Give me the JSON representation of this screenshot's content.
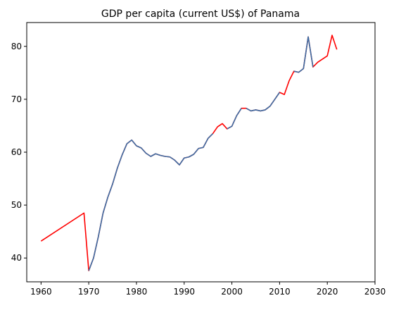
{
  "chart_data": {
    "type": "line",
    "title": "GDP per capita (current US$) of Panama",
    "xlabel": "",
    "ylabel": "",
    "xlim": [
      1957,
      2030
    ],
    "ylim": [
      35.5,
      84.5
    ],
    "xticks": [
      1960,
      1970,
      1980,
      1990,
      2000,
      2010,
      2020,
      2030
    ],
    "yticks": [
      40,
      50,
      60,
      70,
      80
    ],
    "grid": false,
    "series": [
      {
        "color": "#ff0000",
        "points": [
          [
            1960,
            43.2
          ],
          [
            1969,
            48.5
          ],
          [
            1970,
            37.6
          ],
          [
            1971,
            40.0
          ],
          [
            1972,
            44.0
          ],
          [
            1973,
            48.5
          ],
          [
            1974,
            51.5
          ],
          [
            1975,
            54.0
          ],
          [
            1976,
            57.0
          ],
          [
            1977,
            59.5
          ],
          [
            1978,
            61.6
          ],
          [
            1979,
            62.3
          ],
          [
            1980,
            61.2
          ],
          [
            1981,
            60.8
          ],
          [
            1982,
            59.8
          ],
          [
            1983,
            59.2
          ],
          [
            1984,
            59.7
          ],
          [
            1985,
            59.4
          ],
          [
            1986,
            59.2
          ],
          [
            1987,
            59.1
          ],
          [
            1988,
            58.5
          ],
          [
            1989,
            57.6
          ],
          [
            1990,
            58.9
          ],
          [
            1991,
            59.1
          ],
          [
            1992,
            59.6
          ],
          [
            1993,
            60.7
          ],
          [
            1994,
            60.9
          ],
          [
            1995,
            62.6
          ],
          [
            1996,
            63.5
          ],
          [
            1997,
            64.8
          ],
          [
            1998,
            65.4
          ],
          [
            1999,
            64.4
          ],
          [
            2000,
            64.9
          ],
          [
            2001,
            66.9
          ],
          [
            2002,
            68.3
          ],
          [
            2003,
            68.3
          ],
          [
            2004,
            67.8
          ],
          [
            2005,
            68.0
          ],
          [
            2006,
            67.8
          ],
          [
            2007,
            68.0
          ],
          [
            2008,
            68.7
          ],
          [
            2009,
            70.0
          ],
          [
            2010,
            71.3
          ],
          [
            2011,
            70.9
          ],
          [
            2012,
            73.5
          ],
          [
            2013,
            75.3
          ],
          [
            2014,
            75.1
          ],
          [
            2015,
            75.8
          ],
          [
            2016,
            81.8
          ],
          [
            2017,
            76.1
          ],
          [
            2018,
            77.0
          ],
          [
            2019,
            77.6
          ],
          [
            2020,
            78.2
          ],
          [
            2021,
            82.1
          ],
          [
            2022,
            79.4
          ]
        ]
      },
      {
        "color": "#3a6ea5",
        "points": [
          [
            1970,
            37.6
          ],
          [
            1971,
            40.0
          ],
          [
            1972,
            44.0
          ],
          [
            1973,
            48.5
          ],
          [
            1974,
            51.5
          ],
          [
            1975,
            54.0
          ],
          [
            1976,
            57.0
          ],
          [
            1977,
            59.5
          ],
          [
            1978,
            61.6
          ],
          [
            1979,
            62.3
          ],
          [
            1980,
            61.2
          ],
          [
            1981,
            60.8
          ],
          [
            1982,
            59.8
          ],
          [
            1983,
            59.2
          ],
          [
            1984,
            59.7
          ],
          [
            1985,
            59.4
          ],
          [
            1986,
            59.2
          ],
          [
            1987,
            59.1
          ],
          [
            1988,
            58.5
          ],
          [
            1989,
            57.6
          ],
          [
            1990,
            58.9
          ],
          [
            1991,
            59.1
          ],
          [
            1992,
            59.6
          ],
          [
            1993,
            60.7
          ],
          [
            1994,
            60.9
          ],
          [
            1995,
            62.6
          ],
          [
            1996,
            63.5
          ]
        ]
      },
      {
        "color": "#3a6ea5",
        "points": [
          [
            1999,
            64.4
          ],
          [
            2000,
            64.9
          ],
          [
            2001,
            66.9
          ],
          [
            2002,
            68.3
          ]
        ]
      },
      {
        "color": "#3a6ea5",
        "points": [
          [
            2003,
            68.3
          ],
          [
            2004,
            67.8
          ],
          [
            2005,
            68.0
          ],
          [
            2006,
            67.8
          ],
          [
            2007,
            68.0
          ],
          [
            2008,
            68.7
          ],
          [
            2009,
            70.0
          ],
          [
            2010,
            71.3
          ]
        ]
      },
      {
        "color": "#3a6ea5",
        "points": [
          [
            2013,
            75.3
          ],
          [
            2014,
            75.1
          ],
          [
            2015,
            75.8
          ],
          [
            2016,
            81.8
          ],
          [
            2017,
            76.1
          ]
        ]
      }
    ]
  }
}
